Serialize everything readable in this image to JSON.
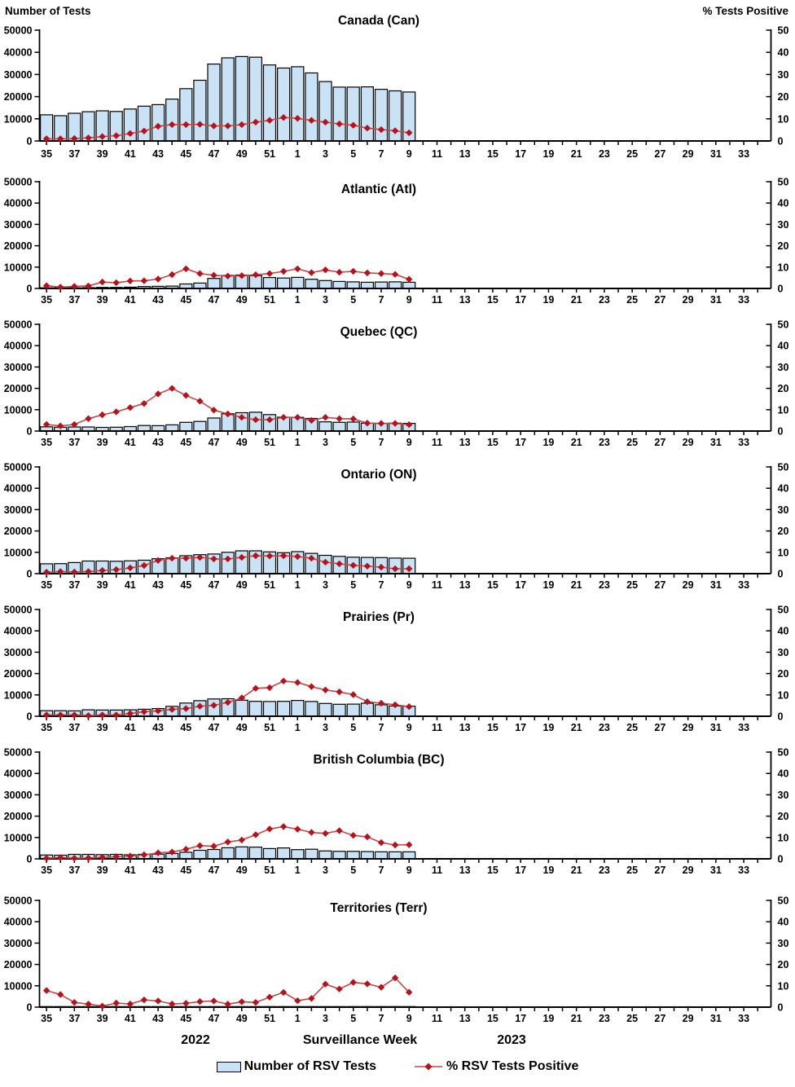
{
  "header": {
    "left_axis_title": "Number of Tests",
    "right_axis_title": "% Tests Positive"
  },
  "footer": {
    "year_left": "2022",
    "axis_label": "Surveillance Week",
    "year_right": "2023"
  },
  "legend": {
    "bar_label": "Number of RSV Tests",
    "line_label": "% RSV Tests Positive"
  },
  "colors": {
    "bar_fill": "#C9E2F5",
    "bar_stroke": "#000000",
    "line": "#CC4346",
    "marker": "#B5121B",
    "axis": "#000000"
  },
  "chart_data": {
    "type": "combo-multipanel",
    "x_label": "Surveillance Week",
    "x_weeks": [
      35,
      36,
      37,
      38,
      39,
      40,
      41,
      42,
      43,
      44,
      45,
      46,
      47,
      48,
      49,
      50,
      51,
      52,
      1,
      2,
      3,
      4,
      5,
      6,
      7,
      8,
      9,
      10,
      11,
      12,
      13,
      14,
      15,
      16,
      17,
      18,
      19,
      20,
      21,
      22,
      23,
      24,
      25,
      26,
      27,
      28,
      29,
      30,
      31,
      32,
      33,
      34
    ],
    "x_tick_label_rule": "odd weeks labeled",
    "left_axis": {
      "title": "Number of Tests",
      "min": 0,
      "max": 50000,
      "ticks": [
        0,
        10000,
        20000,
        30000,
        40000,
        50000
      ]
    },
    "right_axis": {
      "title": "% Tests Positive",
      "min": 0,
      "max": 50,
      "ticks": [
        0,
        10,
        20,
        30,
        40,
        50
      ]
    },
    "bar_series_name": "Number of RSV Tests",
    "line_series_name": "% RSV Tests Positive",
    "panels": [
      {
        "title": "Canada (Can)",
        "tests": [
          11800,
          11400,
          12500,
          13200,
          13600,
          13300,
          14400,
          15700,
          16400,
          18900,
          23600,
          27400,
          34700,
          37500,
          38100,
          37800,
          34300,
          32900,
          33500,
          30700,
          26800,
          24300,
          24300,
          24400,
          23300,
          22600,
          22100
        ],
        "pct_positive": [
          1.0,
          1.0,
          1.1,
          1.4,
          2.0,
          2.4,
          3.4,
          4.5,
          6.6,
          7.4,
          7.4,
          7.5,
          6.8,
          6.8,
          7.4,
          8.5,
          9.3,
          10.6,
          10.2,
          9.3,
          8.5,
          7.7,
          7.1,
          5.8,
          5.1,
          4.6,
          3.7
        ]
      },
      {
        "title": "Atlantic (Atl)",
        "tests": [
          300,
          300,
          300,
          400,
          500,
          500,
          600,
          900,
          1000,
          1100,
          2100,
          2500,
          4700,
          6100,
          6300,
          6000,
          5100,
          4900,
          5200,
          4300,
          3700,
          3300,
          3100,
          2900,
          3000,
          3100,
          2900
        ],
        "pct_positive": [
          1.3,
          0.6,
          1.0,
          1.2,
          3.0,
          2.7,
          3.5,
          3.6,
          4.4,
          6.5,
          9.2,
          7.0,
          6.2,
          5.8,
          6.0,
          6.4,
          7.0,
          8.0,
          9.2,
          7.4,
          8.7,
          7.6,
          8.0,
          7.3,
          7.0,
          6.6,
          4.3
        ]
      },
      {
        "title": "Quebec (QC)",
        "tests": [
          2000,
          1800,
          1900,
          1900,
          1700,
          1800,
          2100,
          2600,
          2500,
          2900,
          4100,
          4500,
          6100,
          8100,
          8600,
          8800,
          7700,
          6500,
          6400,
          5900,
          4300,
          4100,
          4200,
          3700,
          3600,
          3700,
          3600
        ],
        "pct_positive": [
          3.1,
          2.4,
          3.1,
          5.8,
          7.6,
          9.0,
          11.0,
          12.9,
          17.4,
          20.0,
          16.7,
          14.0,
          9.8,
          8.0,
          6.4,
          5.3,
          5.3,
          6.4,
          6.4,
          5.0,
          6.4,
          5.8,
          5.7,
          3.7,
          3.6,
          3.6,
          3.0
        ]
      },
      {
        "title": "Ontario (ON)",
        "tests": [
          4600,
          4700,
          5200,
          5900,
          5900,
          5800,
          6000,
          6300,
          7000,
          7400,
          8400,
          8900,
          9200,
          10000,
          10700,
          10700,
          10200,
          9800,
          10300,
          9500,
          8600,
          8100,
          7700,
          7600,
          7500,
          7300,
          7200
        ],
        "pct_positive": [
          0.7,
          1.0,
          0.8,
          1.0,
          1.5,
          1.9,
          2.7,
          3.8,
          6.2,
          7.2,
          7.2,
          7.6,
          6.9,
          6.9,
          7.6,
          8.4,
          8.3,
          8.4,
          8.0,
          7.2,
          5.4,
          4.6,
          3.9,
          3.5,
          3.0,
          2.3,
          2.3
        ]
      },
      {
        "title": "Prairies (Pr)",
        "tests": [
          2600,
          2600,
          2500,
          3000,
          2900,
          2900,
          3000,
          3300,
          3600,
          4600,
          6200,
          7300,
          8100,
          8200,
          7500,
          7000,
          6900,
          7000,
          7400,
          6900,
          6000,
          5600,
          5700,
          6100,
          5400,
          4800,
          4700
        ],
        "pct_positive": [
          0.6,
          0.6,
          0.6,
          0.3,
          0.6,
          0.6,
          1.3,
          2.1,
          2.5,
          3.2,
          3.6,
          4.7,
          5.1,
          6.5,
          8.6,
          13.1,
          13.4,
          16.5,
          15.8,
          13.9,
          12.3,
          11.4,
          10.1,
          6.8,
          6.1,
          5.4,
          4.5
        ]
      },
      {
        "title": "British Columbia (BC)",
        "tests": [
          1800,
          1700,
          2100,
          2100,
          2000,
          2100,
          1900,
          2100,
          2200,
          2500,
          3100,
          4000,
          4400,
          5200,
          5600,
          5500,
          4800,
          5100,
          4300,
          4500,
          3700,
          3500,
          3500,
          3400,
          3300,
          3300,
          3300
        ],
        "pct_positive": [
          0.3,
          0.6,
          0.3,
          0.4,
          0.7,
          1.0,
          1.3,
          1.9,
          2.8,
          3.2,
          4.5,
          6.2,
          5.9,
          7.9,
          8.8,
          11.3,
          14.0,
          15.1,
          13.9,
          12.4,
          11.9,
          13.2,
          11.0,
          10.3,
          7.6,
          6.5,
          6.6
        ]
      },
      {
        "title": "Territories (Terr)",
        "tests": [
          250,
          250,
          250,
          250,
          250,
          250,
          250,
          250,
          250,
          250,
          250,
          250,
          250,
          250,
          250,
          250,
          250,
          250,
          250,
          250,
          250,
          250,
          250,
          250,
          250,
          250,
          250
        ],
        "pct_positive": [
          7.8,
          5.9,
          2.2,
          1.4,
          0.5,
          1.9,
          1.5,
          3.4,
          2.9,
          1.5,
          1.8,
          2.6,
          2.9,
          1.4,
          2.5,
          2.2,
          4.7,
          6.9,
          3.0,
          4.1,
          10.8,
          8.5,
          11.6,
          10.9,
          9.3,
          13.7,
          7.0
        ]
      }
    ]
  }
}
